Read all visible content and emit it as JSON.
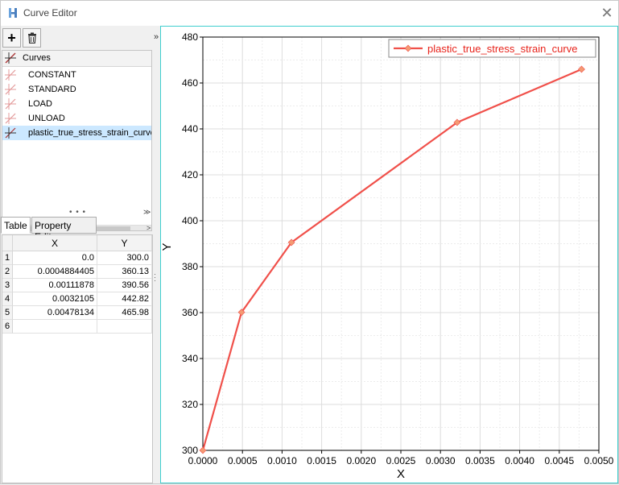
{
  "window": {
    "title": "Curve Editor",
    "icon": "hyperworks-h-icon",
    "close_icon": "close-icon",
    "close_glyph": "✕"
  },
  "toolbar": {
    "add_glyph": "+",
    "add_icon": "plus-icon",
    "delete_icon": "trash-icon",
    "collapse_glyph": "»"
  },
  "curves": {
    "header": "Curves",
    "items": [
      {
        "label": "CONSTANT",
        "selected": false
      },
      {
        "label": "STANDARD",
        "selected": false
      },
      {
        "label": "LOAD",
        "selected": false
      },
      {
        "label": "UNLOAD",
        "selected": false
      },
      {
        "label": "plastic_true_stress_strain_curve",
        "selected": true
      }
    ],
    "colors": {
      "selected_bg": "#cce8ff",
      "curve_icon": "#e39b9b",
      "curve_icon_active": "#333333"
    }
  },
  "scroll": {
    "left_glyph": "<",
    "right_glyph": ">",
    "splitter_glyph": "• • •",
    "down_glyph": "≫"
  },
  "tabs": [
    {
      "label": "Table",
      "active": true
    },
    {
      "label": "Property Editor",
      "active": false
    }
  ],
  "table": {
    "columns": [
      "X",
      "Y"
    ],
    "rows": [
      {
        "idx": "1",
        "x": "0.0",
        "y": "300.0"
      },
      {
        "idx": "2",
        "x": "0.0004884405",
        "y": "360.13"
      },
      {
        "idx": "3",
        "x": "0.00111878",
        "y": "390.56"
      },
      {
        "idx": "4",
        "x": "0.0032105",
        "y": "442.82"
      },
      {
        "idx": "5",
        "x": "0.00478134",
        "y": "465.98"
      },
      {
        "idx": "6",
        "x": "",
        "y": ""
      }
    ]
  },
  "chart_data": {
    "type": "line",
    "title": "",
    "xlabel": "X",
    "ylabel": "Y",
    "xlim": [
      0.0,
      0.005
    ],
    "ylim": [
      300,
      480
    ],
    "xticks": [
      "0.0000",
      "0.0005",
      "0.0010",
      "0.0015",
      "0.0020",
      "0.0025",
      "0.0030",
      "0.0035",
      "0.0040",
      "0.0045",
      "0.0050"
    ],
    "yticks": [
      "300",
      "320",
      "340",
      "360",
      "380",
      "400",
      "420",
      "440",
      "460",
      "480"
    ],
    "grid": true,
    "legend_position": "top-right",
    "series": [
      {
        "name": "plastic_true_stress_strain_curve",
        "color": "#f0504a",
        "marker_color": "#f49a73",
        "x": [
          0.0,
          0.0004884405,
          0.00111878,
          0.0032105,
          0.00478134
        ],
        "y": [
          300.0,
          360.13,
          390.56,
          442.82,
          465.98
        ]
      }
    ]
  }
}
